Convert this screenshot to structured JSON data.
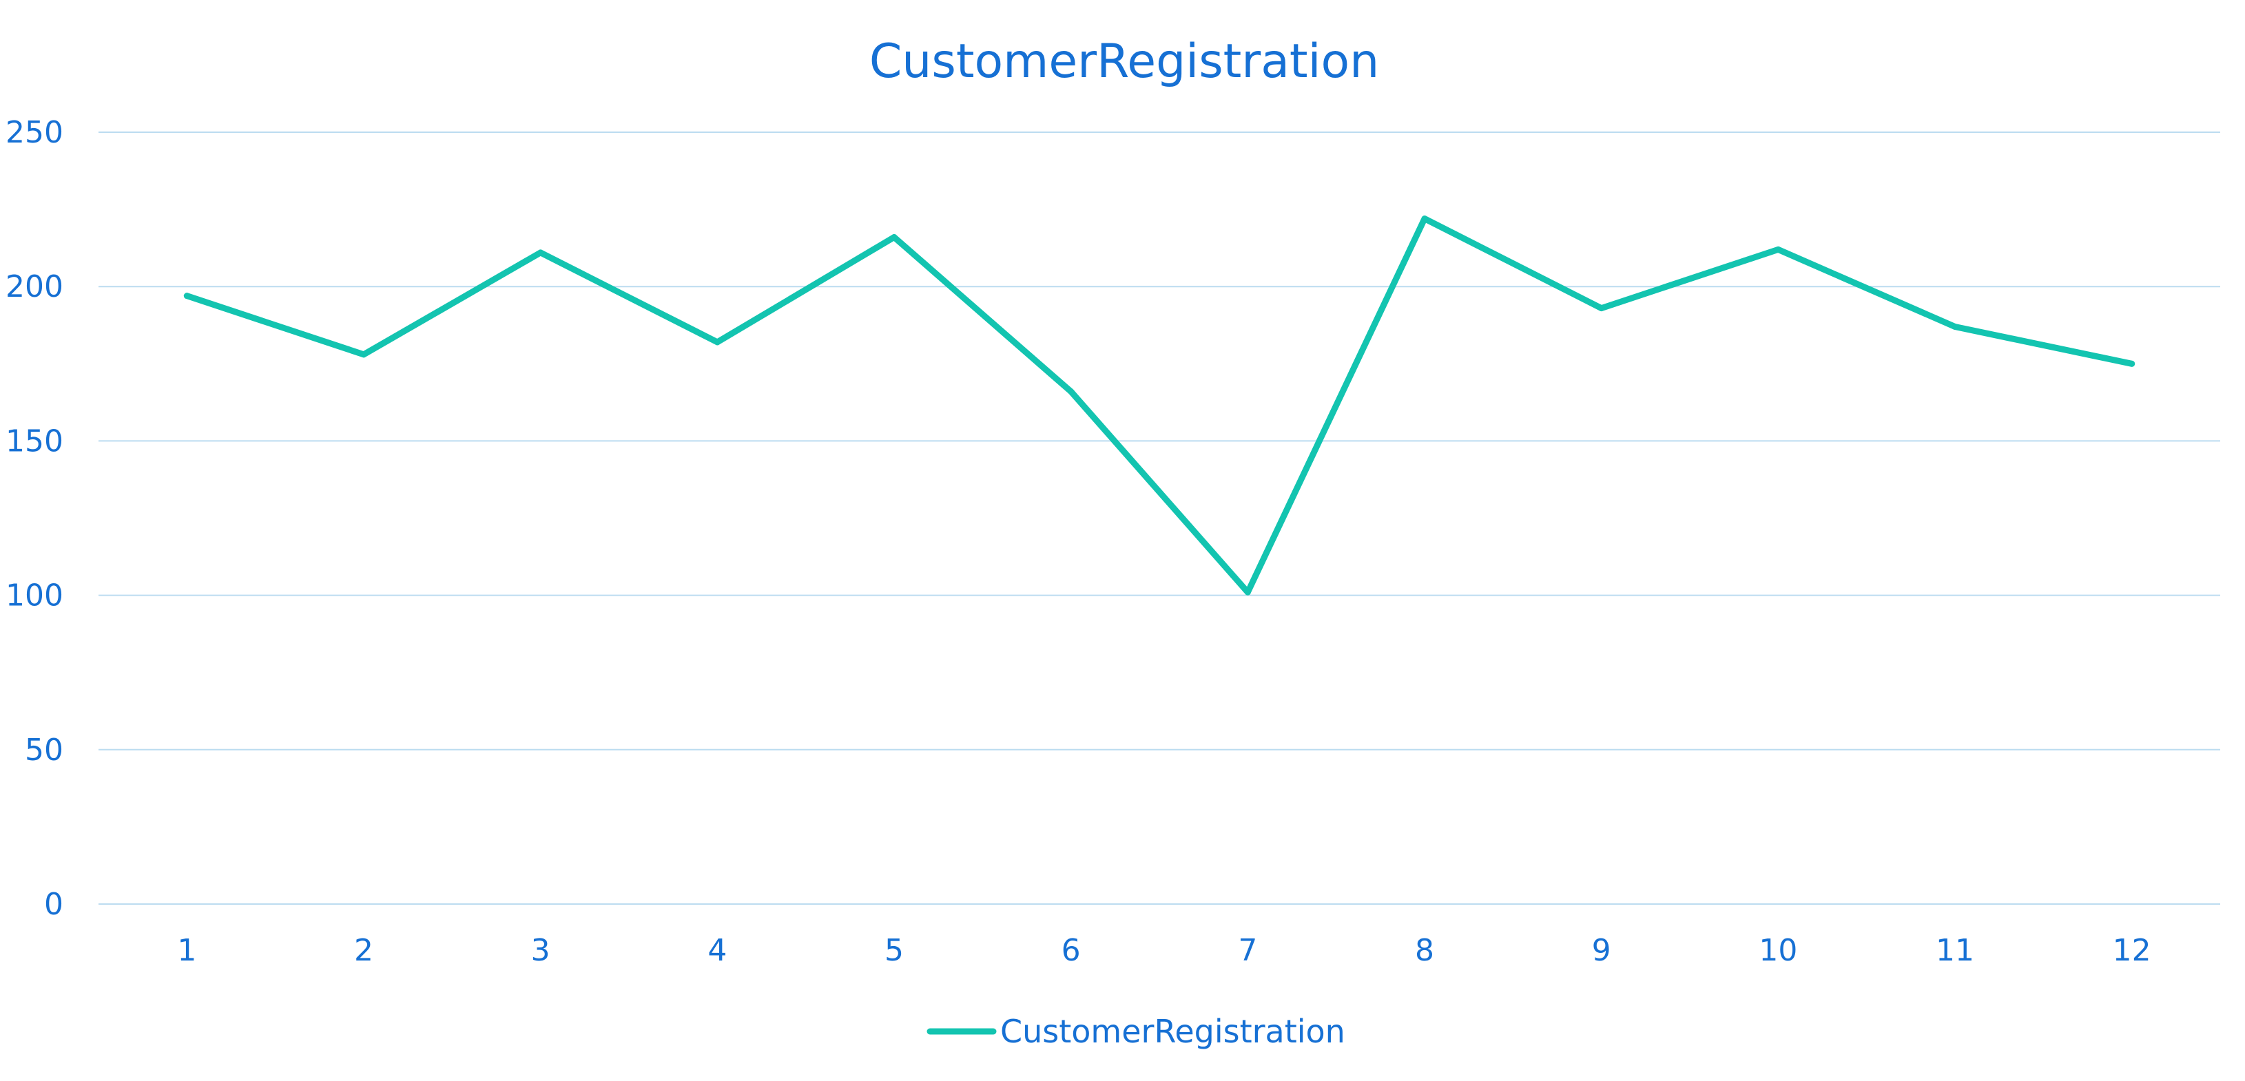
{
  "colors": {
    "text": "#1670d4",
    "grid": "#bcdcf0",
    "series": "#13c4b0",
    "background": "#ffffff"
  },
  "chart_data": {
    "type": "line",
    "title": "CustomerRegistration",
    "xlabel": "",
    "ylabel": "",
    "categories": [
      "1",
      "2",
      "3",
      "4",
      "5",
      "6",
      "7",
      "8",
      "9",
      "10",
      "11",
      "12"
    ],
    "series": [
      {
        "name": "CustomerRegistration",
        "values": [
          197,
          178,
          211,
          182,
          216,
          166,
          101,
          222,
          193,
          212,
          187,
          175
        ]
      }
    ],
    "ylim": [
      0,
      250
    ],
    "yticks": [
      "0",
      "50",
      "100",
      "150",
      "200",
      "250"
    ],
    "grid": "horizontal",
    "legend": "bottom-center"
  }
}
